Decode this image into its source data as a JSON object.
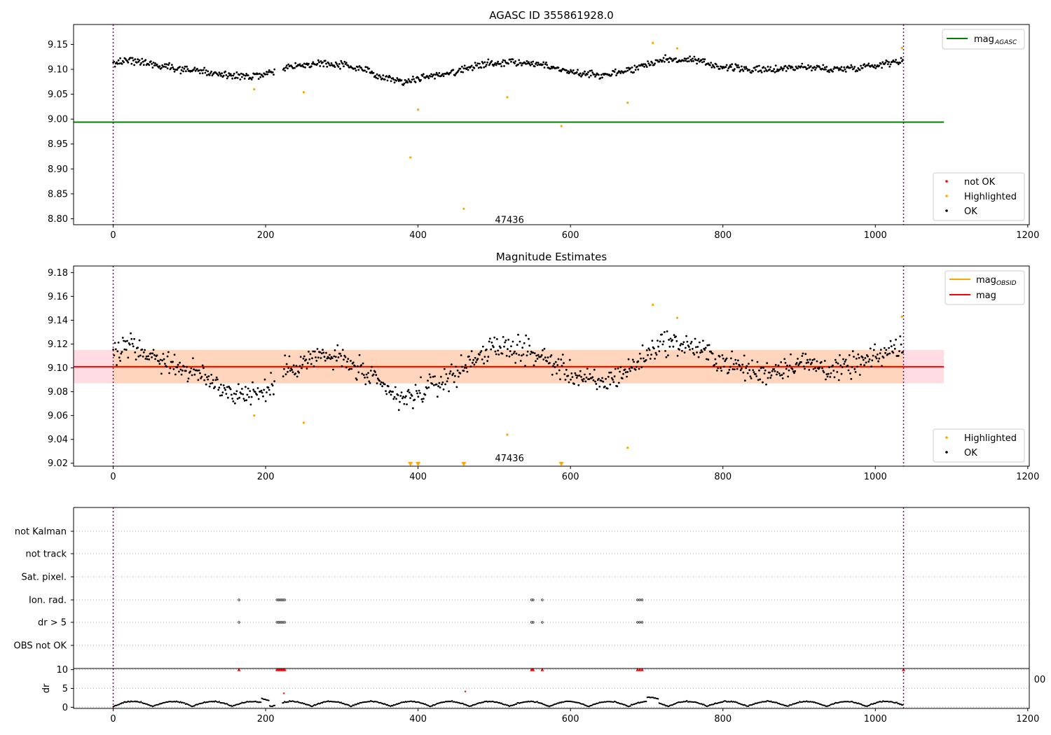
{
  "chart_data": [
    {
      "type": "scatter",
      "title": "AGASC ID 355861928.0",
      "xlabel": "",
      "ylabel": "",
      "xlim": [
        -52,
        1202
      ],
      "ylim": [
        8.788,
        9.19
      ],
      "xticks": [
        0,
        200,
        400,
        600,
        800,
        1000,
        1200
      ],
      "yticks": [
        8.8,
        8.85,
        8.9,
        8.95,
        9.0,
        9.05,
        9.1,
        9.15
      ],
      "ytick_labels": [
        "8.80",
        "8.85",
        "8.90",
        "8.95",
        "9.00",
        "9.05",
        "9.10",
        "9.15"
      ],
      "vlines": [
        0,
        1037
      ],
      "annotation": {
        "text": "47436",
        "x": 520,
        "y": 8.797
      },
      "mag_agasc": 8.994,
      "mag_agasc_xrange": [
        -52,
        1090
      ],
      "legend_top": {
        "placement": "top-right",
        "entries": [
          {
            "label": "mag",
            "sub": "AGASC",
            "color": "#008000"
          }
        ]
      },
      "legend_bottom": {
        "placement": "bottom-right",
        "entries": [
          {
            "label": "not OK",
            "color": "#ff0000"
          },
          {
            "label": "Highlighted",
            "color": "#ffa500"
          },
          {
            "label": "OK",
            "color": "#000000"
          }
        ]
      },
      "ok_trend": [
        [
          0,
          9.11
        ],
        [
          20,
          9.12
        ],
        [
          60,
          9.108
        ],
        [
          120,
          9.095
        ],
        [
          160,
          9.085
        ],
        [
          200,
          9.088
        ],
        [
          230,
          9.105
        ],
        [
          270,
          9.112
        ],
        [
          300,
          9.11
        ],
        [
          340,
          9.093
        ],
        [
          380,
          9.075
        ],
        [
          410,
          9.085
        ],
        [
          450,
          9.095
        ],
        [
          480,
          9.11
        ],
        [
          520,
          9.115
        ],
        [
          560,
          9.11
        ],
        [
          600,
          9.095
        ],
        [
          640,
          9.088
        ],
        [
          680,
          9.1
        ],
        [
          720,
          9.12
        ],
        [
          760,
          9.118
        ],
        [
          800,
          9.105
        ],
        [
          850,
          9.098
        ],
        [
          900,
          9.105
        ],
        [
          950,
          9.1
        ],
        [
          1000,
          9.108
        ],
        [
          1037,
          9.12
        ]
      ],
      "highlighted": [
        [
          185,
          9.06
        ],
        [
          250,
          9.054
        ],
        [
          390,
          8.923
        ],
        [
          400,
          9.019
        ],
        [
          460,
          8.82
        ],
        [
          517,
          9.044
        ],
        [
          588,
          8.986
        ],
        [
          675,
          9.033
        ],
        [
          708,
          9.153
        ],
        [
          740,
          9.142
        ],
        [
          1035,
          9.143
        ]
      ]
    },
    {
      "type": "scatter",
      "title": "Magnitude Estimates",
      "xlabel": "",
      "ylabel": "",
      "xlim": [
        -52,
        1202
      ],
      "ylim": [
        9.0175,
        9.1855
      ],
      "xticks": [
        0,
        200,
        400,
        600,
        800,
        1000,
        1200
      ],
      "yticks": [
        9.02,
        9.04,
        9.06,
        9.08,
        9.1,
        9.12,
        9.14,
        9.16,
        9.18
      ],
      "ytick_labels": [
        "9.02",
        "9.04",
        "9.06",
        "9.08",
        "9.10",
        "9.12",
        "9.14",
        "9.16",
        "9.18"
      ],
      "vlines": [
        0,
        1037
      ],
      "annotation": {
        "text": "47436",
        "x": 520,
        "y": 9.024
      },
      "mag": 9.101,
      "mag_band": [
        9.087,
        9.115
      ],
      "mag_obsid_band": [
        9.087,
        9.115
      ],
      "band_xrange": [
        -52,
        1090
      ],
      "obsid_xrange": [
        0,
        1037
      ],
      "legend_top": {
        "placement": "top-right",
        "entries": [
          {
            "label": "mag",
            "sub": "OBSID",
            "color": "#ffa500"
          },
          {
            "label": "mag",
            "color": "#ff0000"
          }
        ]
      },
      "legend_bottom": {
        "placement": "bottom-right",
        "entries": [
          {
            "label": "Highlighted",
            "color": "#ffa500"
          },
          {
            "label": "OK",
            "color": "#000000"
          }
        ]
      },
      "ok_trend": [
        [
          0,
          9.11
        ],
        [
          20,
          9.12
        ],
        [
          60,
          9.108
        ],
        [
          120,
          9.092
        ],
        [
          160,
          9.078
        ],
        [
          200,
          9.08
        ],
        [
          230,
          9.1
        ],
        [
          270,
          9.11
        ],
        [
          300,
          9.108
        ],
        [
          340,
          9.09
        ],
        [
          380,
          9.072
        ],
        [
          410,
          9.082
        ],
        [
          450,
          9.095
        ],
        [
          480,
          9.112
        ],
        [
          520,
          9.118
        ],
        [
          560,
          9.11
        ],
        [
          600,
          9.095
        ],
        [
          640,
          9.086
        ],
        [
          680,
          9.1
        ],
        [
          720,
          9.122
        ],
        [
          760,
          9.118
        ],
        [
          800,
          9.105
        ],
        [
          850,
          9.095
        ],
        [
          900,
          9.105
        ],
        [
          950,
          9.098
        ],
        [
          1000,
          9.108
        ],
        [
          1037,
          9.12
        ]
      ],
      "highlighted": [
        [
          185,
          9.06
        ],
        [
          250,
          9.054
        ],
        [
          517,
          9.044
        ],
        [
          675,
          9.033
        ],
        [
          708,
          9.153
        ],
        [
          740,
          9.142
        ],
        [
          1035,
          9.143
        ]
      ],
      "clipped_markers": [
        390,
        400,
        460,
        588
      ]
    },
    {
      "type": "scatter",
      "title": "",
      "xlabel": "",
      "ylabel": "",
      "xlim": [
        -52,
        1202
      ],
      "vlines": [
        0,
        1037
      ],
      "categories": [
        "not Kalman",
        "not track",
        "Sat. pixel.",
        "Ion. rad.",
        "dr > 5",
        "OBS not OK"
      ],
      "flag_points": {
        "Ion. rad.": [
          165,
          215,
          217,
          219,
          221,
          223,
          225,
          549,
          551,
          563,
          688,
          691,
          694
        ],
        "dr > 5": [
          165,
          215,
          217,
          219,
          221,
          223,
          225,
          549,
          551,
          563,
          688,
          691,
          694
        ]
      }
    },
    {
      "type": "scatter",
      "title": "",
      "xlabel": "",
      "ylabel": "dr",
      "xlim": [
        -52,
        1202
      ],
      "ylim": [
        -0.3,
        10.3
      ],
      "xticks": [
        0,
        200,
        400,
        600,
        800,
        1000,
        1200
      ],
      "yticks": [
        0,
        5,
        10
      ],
      "ytick_labels": [
        "0",
        "5",
        "10"
      ],
      "vlines": [
        0,
        1037
      ],
      "overflow_markers": [
        165,
        215,
        217,
        219,
        221,
        223,
        225,
        549,
        551,
        563,
        688,
        691,
        694,
        1037
      ],
      "red_points": [
        [
          224,
          3.7
        ],
        [
          462,
          4.2
        ]
      ],
      "stray_label": "00"
    }
  ]
}
